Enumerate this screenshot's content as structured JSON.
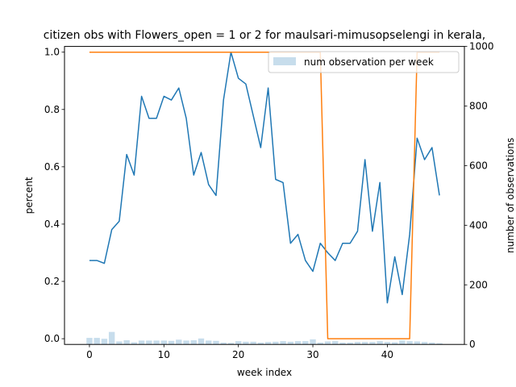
{
  "chart_data": {
    "type": "line",
    "title": "citizen obs with Flowers_open = 1 or 2 for maulsari-mimusopselengi in kerala,",
    "xlabel": "week index",
    "ylabel_left": "percent",
    "ylabel_right": "number of observations",
    "xlim": [
      -3.35,
      50.35
    ],
    "ylim_left": [
      -0.02,
      1.02
    ],
    "ylim_right": [
      0,
      1000
    ],
    "xticks": [
      0,
      10,
      20,
      30,
      40
    ],
    "yticks_left": [
      0.0,
      0.2,
      0.4,
      0.6,
      0.8,
      1.0
    ],
    "yticks_left_labels": [
      "0.0",
      "0.2",
      "0.4",
      "0.6",
      "0.8",
      "1.0"
    ],
    "yticks_right": [
      0,
      200,
      400,
      600,
      800,
      1000
    ],
    "grid": false,
    "legend_position": "top-right",
    "x": [
      0,
      1,
      2,
      3,
      4,
      5,
      6,
      7,
      8,
      9,
      10,
      11,
      12,
      13,
      14,
      15,
      16,
      17,
      18,
      19,
      20,
      21,
      22,
      23,
      24,
      25,
      26,
      27,
      28,
      29,
      30,
      31,
      32,
      33,
      34,
      35,
      36,
      37,
      38,
      39,
      40,
      41,
      42,
      43,
      44,
      45,
      46,
      47
    ],
    "series": [
      {
        "axis": "left",
        "color": "#1f77b4",
        "values": [
          0.273,
          0.273,
          0.263,
          0.381,
          0.41,
          0.643,
          0.571,
          0.846,
          0.769,
          0.769,
          0.846,
          0.833,
          0.875,
          0.769,
          0.571,
          0.65,
          0.538,
          0.5,
          0.833,
          1.0,
          0.909,
          0.889,
          0.778,
          0.667,
          0.875,
          0.556,
          0.545,
          0.333,
          0.364,
          0.273,
          0.235,
          0.333,
          0.3,
          0.273,
          0.333,
          0.333,
          0.375,
          0.625,
          0.375,
          0.545,
          0.125,
          0.286,
          0.154,
          0.364,
          0.7,
          0.625,
          0.667,
          0.5
        ]
      },
      {
        "axis": "left",
        "color": "#ff7f0e",
        "values": [
          1.0,
          1.0,
          1.0,
          1.0,
          1.0,
          1.0,
          1.0,
          1.0,
          1.0,
          1.0,
          1.0,
          1.0,
          1.0,
          1.0,
          1.0,
          1.0,
          1.0,
          1.0,
          1.0,
          1.0,
          1.0,
          1.0,
          1.0,
          1.0,
          1.0,
          1.0,
          1.0,
          1.0,
          1.0,
          1.0,
          1.0,
          1.0,
          0.0,
          0.0,
          0.0,
          0.0,
          0.0,
          0.0,
          0.0,
          0.0,
          0.0,
          0.0,
          0.0,
          0.0,
          1.0,
          1.0,
          1.0,
          1.0
        ]
      },
      {
        "name": "num observation per week",
        "axis": "right",
        "type": "bar",
        "color": "#1f77b4",
        "opacity": 0.25,
        "values": [
          22,
          22,
          19,
          42,
          10,
          14,
          7,
          13,
          13,
          13,
          13,
          12,
          16,
          13,
          14,
          20,
          13,
          12,
          6,
          5,
          11,
          9,
          9,
          6,
          8,
          9,
          11,
          9,
          11,
          11,
          17,
          6,
          10,
          11,
          6,
          6,
          8,
          8,
          8,
          11,
          8,
          7,
          13,
          11,
          10,
          8,
          6,
          4
        ]
      }
    ]
  }
}
